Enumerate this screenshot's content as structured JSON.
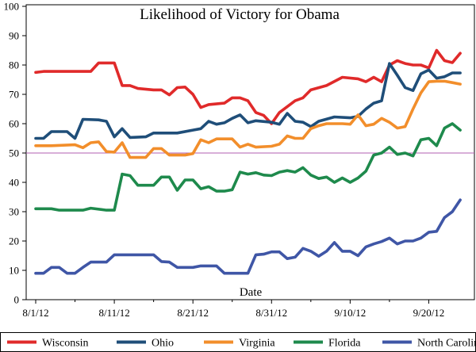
{
  "chart_data": {
    "type": "line",
    "title": "Likelihood of Victory for Obama",
    "xlabel": "Date",
    "ylabel": "",
    "ylim": [
      0,
      100
    ],
    "yticks": [
      0,
      10,
      20,
      30,
      40,
      50,
      60,
      70,
      80,
      90,
      100
    ],
    "xlim": [
      "2012-08-01",
      "2012-09-25"
    ],
    "xticks": [
      {
        "date": "2012-08-01",
        "label": "8/1/12"
      },
      {
        "date": "2012-08-11",
        "label": "8/11/12"
      },
      {
        "date": "2012-08-21",
        "label": "8/21/12"
      },
      {
        "date": "2012-08-31",
        "label": "8/31/12"
      },
      {
        "date": "2012-09-10",
        "label": "9/10/12"
      },
      {
        "date": "2012-09-20",
        "label": "9/20/12"
      }
    ],
    "reference_line": {
      "y": 50,
      "color": "#b05fb0"
    },
    "legend_position": "bottom",
    "grid": false,
    "series": [
      {
        "name": "Wisconsin",
        "color": "#e02a2a",
        "points": [
          [
            "2012-08-01",
            77.5
          ],
          [
            "2012-08-02",
            77.8
          ],
          [
            "2012-08-05",
            77.8
          ],
          [
            "2012-08-08",
            77.8
          ],
          [
            "2012-08-09",
            80.7
          ],
          [
            "2012-08-11",
            80.7
          ],
          [
            "2012-08-12",
            73.0
          ],
          [
            "2012-08-13",
            73.0
          ],
          [
            "2012-08-14",
            72.0
          ],
          [
            "2012-08-16",
            71.5
          ],
          [
            "2012-08-17",
            71.5
          ],
          [
            "2012-08-18",
            69.8
          ],
          [
            "2012-08-19",
            72.3
          ],
          [
            "2012-08-20",
            72.5
          ],
          [
            "2012-08-21",
            70.0
          ],
          [
            "2012-08-22",
            65.5
          ],
          [
            "2012-08-23",
            66.5
          ],
          [
            "2012-08-25",
            67.0
          ],
          [
            "2012-08-26",
            68.8
          ],
          [
            "2012-08-27",
            68.8
          ],
          [
            "2012-08-28",
            67.8
          ],
          [
            "2012-08-29",
            63.8
          ],
          [
            "2012-08-30",
            62.8
          ],
          [
            "2012-08-31",
            60.0
          ],
          [
            "2012-09-01",
            63.8
          ],
          [
            "2012-09-03",
            67.8
          ],
          [
            "2012-09-04",
            68.8
          ],
          [
            "2012-09-05",
            71.5
          ],
          [
            "2012-09-07",
            73.0
          ],
          [
            "2012-09-09",
            75.8
          ],
          [
            "2012-09-11",
            75.3
          ],
          [
            "2012-09-12",
            74.3
          ],
          [
            "2012-09-13",
            75.8
          ],
          [
            "2012-09-14",
            74.3
          ],
          [
            "2012-09-15",
            80.0
          ],
          [
            "2012-09-16",
            81.5
          ],
          [
            "2012-09-17",
            80.5
          ],
          [
            "2012-09-18",
            80.0
          ],
          [
            "2012-09-19",
            80.0
          ],
          [
            "2012-09-20",
            79.0
          ],
          [
            "2012-09-21",
            85.0
          ],
          [
            "2012-09-22",
            81.5
          ],
          [
            "2012-09-23",
            80.8
          ],
          [
            "2012-09-24",
            84.0
          ]
        ]
      },
      {
        "name": "Ohio",
        "color": "#1f4e79",
        "points": [
          [
            "2012-08-01",
            55.0
          ],
          [
            "2012-08-02",
            55.0
          ],
          [
            "2012-08-03",
            57.3
          ],
          [
            "2012-08-05",
            57.3
          ],
          [
            "2012-08-06",
            55.0
          ],
          [
            "2012-08-07",
            61.5
          ],
          [
            "2012-08-09",
            61.3
          ],
          [
            "2012-08-10",
            60.8
          ],
          [
            "2012-08-11",
            55.5
          ],
          [
            "2012-08-12",
            58.3
          ],
          [
            "2012-08-13",
            55.3
          ],
          [
            "2012-08-15",
            55.5
          ],
          [
            "2012-08-16",
            56.8
          ],
          [
            "2012-08-19",
            56.8
          ],
          [
            "2012-08-21",
            57.8
          ],
          [
            "2012-08-22",
            58.3
          ],
          [
            "2012-08-23",
            60.8
          ],
          [
            "2012-08-24",
            59.8
          ],
          [
            "2012-08-25",
            60.3
          ],
          [
            "2012-08-26",
            61.8
          ],
          [
            "2012-08-27",
            63.0
          ],
          [
            "2012-08-28",
            60.3
          ],
          [
            "2012-08-29",
            61.0
          ],
          [
            "2012-08-31",
            60.5
          ],
          [
            "2012-09-01",
            59.8
          ],
          [
            "2012-09-02",
            63.5
          ],
          [
            "2012-09-03",
            60.8
          ],
          [
            "2012-09-04",
            60.5
          ],
          [
            "2012-09-05",
            59.0
          ],
          [
            "2012-09-06",
            60.8
          ],
          [
            "2012-09-08",
            62.3
          ],
          [
            "2012-09-10",
            62.0
          ],
          [
            "2012-09-11",
            62.5
          ],
          [
            "2012-09-12",
            65.0
          ],
          [
            "2012-09-13",
            67.0
          ],
          [
            "2012-09-14",
            67.8
          ],
          [
            "2012-09-15",
            80.5
          ],
          [
            "2012-09-16",
            76.5
          ],
          [
            "2012-09-17",
            72.3
          ],
          [
            "2012-09-18",
            71.3
          ],
          [
            "2012-09-19",
            77.0
          ],
          [
            "2012-09-20",
            78.3
          ],
          [
            "2012-09-21",
            75.5
          ],
          [
            "2012-09-22",
            76.0
          ],
          [
            "2012-09-23",
            77.3
          ],
          [
            "2012-09-24",
            77.3
          ]
        ]
      },
      {
        "name": "Virginia",
        "color": "#f28e2b",
        "points": [
          [
            "2012-08-01",
            52.5
          ],
          [
            "2012-08-03",
            52.5
          ],
          [
            "2012-08-06",
            52.8
          ],
          [
            "2012-08-07",
            51.8
          ],
          [
            "2012-08-08",
            53.5
          ],
          [
            "2012-08-09",
            53.8
          ],
          [
            "2012-08-10",
            50.5
          ],
          [
            "2012-08-11",
            50.3
          ],
          [
            "2012-08-12",
            53.5
          ],
          [
            "2012-08-13",
            48.5
          ],
          [
            "2012-08-15",
            48.5
          ],
          [
            "2012-08-16",
            51.5
          ],
          [
            "2012-08-17",
            51.5
          ],
          [
            "2012-08-18",
            49.3
          ],
          [
            "2012-08-20",
            49.3
          ],
          [
            "2012-08-21",
            49.8
          ],
          [
            "2012-08-22",
            54.5
          ],
          [
            "2012-08-23",
            53.5
          ],
          [
            "2012-08-24",
            54.8
          ],
          [
            "2012-08-26",
            54.8
          ],
          [
            "2012-08-27",
            52.0
          ],
          [
            "2012-08-28",
            53.0
          ],
          [
            "2012-08-29",
            52.0
          ],
          [
            "2012-08-31",
            52.3
          ],
          [
            "2012-09-01",
            53.0
          ],
          [
            "2012-09-02",
            55.8
          ],
          [
            "2012-09-03",
            55.0
          ],
          [
            "2012-09-04",
            55.0
          ],
          [
            "2012-09-05",
            58.3
          ],
          [
            "2012-09-06",
            59.3
          ],
          [
            "2012-09-07",
            60.0
          ],
          [
            "2012-09-09",
            60.0
          ],
          [
            "2012-09-10",
            59.8
          ],
          [
            "2012-09-11",
            63.0
          ],
          [
            "2012-09-12",
            59.3
          ],
          [
            "2012-09-13",
            59.8
          ],
          [
            "2012-09-14",
            61.8
          ],
          [
            "2012-09-15",
            60.5
          ],
          [
            "2012-09-16",
            58.5
          ],
          [
            "2012-09-17",
            59.0
          ],
          [
            "2012-09-18",
            65.0
          ],
          [
            "2012-09-19",
            70.5
          ],
          [
            "2012-09-20",
            74.3
          ],
          [
            "2012-09-21",
            74.5
          ],
          [
            "2012-09-22",
            74.5
          ],
          [
            "2012-09-23",
            74.0
          ],
          [
            "2012-09-24",
            73.5
          ]
        ]
      },
      {
        "name": "Florida",
        "color": "#1e8a4c",
        "points": [
          [
            "2012-08-01",
            31.0
          ],
          [
            "2012-08-03",
            31.0
          ],
          [
            "2012-08-04",
            30.5
          ],
          [
            "2012-08-07",
            30.5
          ],
          [
            "2012-08-08",
            31.2
          ],
          [
            "2012-08-10",
            30.5
          ],
          [
            "2012-08-11",
            30.5
          ],
          [
            "2012-08-12",
            42.8
          ],
          [
            "2012-08-13",
            42.3
          ],
          [
            "2012-08-14",
            39.0
          ],
          [
            "2012-08-16",
            39.0
          ],
          [
            "2012-08-17",
            41.8
          ],
          [
            "2012-08-18",
            41.8
          ],
          [
            "2012-08-19",
            37.3
          ],
          [
            "2012-08-20",
            40.8
          ],
          [
            "2012-08-21",
            40.8
          ],
          [
            "2012-08-22",
            37.8
          ],
          [
            "2012-08-23",
            38.5
          ],
          [
            "2012-08-24",
            37.0
          ],
          [
            "2012-08-25",
            37.0
          ],
          [
            "2012-08-26",
            37.5
          ],
          [
            "2012-08-27",
            43.5
          ],
          [
            "2012-08-28",
            42.8
          ],
          [
            "2012-08-29",
            43.3
          ],
          [
            "2012-08-30",
            42.5
          ],
          [
            "2012-08-31",
            42.3
          ],
          [
            "2012-09-01",
            43.5
          ],
          [
            "2012-09-02",
            44.0
          ],
          [
            "2012-09-03",
            43.5
          ],
          [
            "2012-09-04",
            45.0
          ],
          [
            "2012-09-05",
            42.5
          ],
          [
            "2012-09-06",
            41.3
          ],
          [
            "2012-09-07",
            41.8
          ],
          [
            "2012-09-08",
            40.0
          ],
          [
            "2012-09-09",
            41.5
          ],
          [
            "2012-09-10",
            40.0
          ],
          [
            "2012-09-11",
            41.5
          ],
          [
            "2012-09-12",
            43.8
          ],
          [
            "2012-09-13",
            49.3
          ],
          [
            "2012-09-14",
            50.0
          ],
          [
            "2012-09-15",
            52.0
          ],
          [
            "2012-09-16",
            49.5
          ],
          [
            "2012-09-17",
            50.0
          ],
          [
            "2012-09-18",
            49.0
          ],
          [
            "2012-09-19",
            54.5
          ],
          [
            "2012-09-20",
            55.0
          ],
          [
            "2012-09-21",
            52.5
          ],
          [
            "2012-09-22",
            58.5
          ],
          [
            "2012-09-23",
            60.0
          ],
          [
            "2012-09-24",
            57.8
          ]
        ]
      },
      {
        "name": "North Carolina",
        "color": "#3f56a6",
        "points": [
          [
            "2012-08-01",
            9.0
          ],
          [
            "2012-08-02",
            9.0
          ],
          [
            "2012-08-03",
            11.0
          ],
          [
            "2012-08-04",
            11.0
          ],
          [
            "2012-08-05",
            9.0
          ],
          [
            "2012-08-06",
            9.0
          ],
          [
            "2012-08-07",
            11.0
          ],
          [
            "2012-08-08",
            12.8
          ],
          [
            "2012-08-10",
            12.8
          ],
          [
            "2012-08-11",
            15.3
          ],
          [
            "2012-08-16",
            15.3
          ],
          [
            "2012-08-17",
            13.0
          ],
          [
            "2012-08-18",
            12.8
          ],
          [
            "2012-08-19",
            11.0
          ],
          [
            "2012-08-21",
            11.0
          ],
          [
            "2012-08-22",
            11.5
          ],
          [
            "2012-08-24",
            11.5
          ],
          [
            "2012-08-25",
            9.0
          ],
          [
            "2012-08-28",
            9.0
          ],
          [
            "2012-08-29",
            15.3
          ],
          [
            "2012-08-30",
            15.5
          ],
          [
            "2012-08-31",
            16.3
          ],
          [
            "2012-09-01",
            16.3
          ],
          [
            "2012-09-02",
            14.0
          ],
          [
            "2012-09-03",
            14.5
          ],
          [
            "2012-09-04",
            17.5
          ],
          [
            "2012-09-05",
            16.5
          ],
          [
            "2012-09-06",
            14.8
          ],
          [
            "2012-09-07",
            16.5
          ],
          [
            "2012-09-08",
            19.5
          ],
          [
            "2012-09-09",
            16.5
          ],
          [
            "2012-09-10",
            16.5
          ],
          [
            "2012-09-11",
            15.0
          ],
          [
            "2012-09-12",
            18.0
          ],
          [
            "2012-09-13",
            19.0
          ],
          [
            "2012-09-14",
            19.8
          ],
          [
            "2012-09-15",
            21.0
          ],
          [
            "2012-09-16",
            19.0
          ],
          [
            "2012-09-17",
            20.0
          ],
          [
            "2012-09-18",
            20.0
          ],
          [
            "2012-09-19",
            21.0
          ],
          [
            "2012-09-20",
            23.0
          ],
          [
            "2012-09-21",
            23.3
          ],
          [
            "2012-09-22",
            28.0
          ],
          [
            "2012-09-23",
            30.0
          ],
          [
            "2012-09-24",
            34.0
          ]
        ]
      }
    ]
  }
}
